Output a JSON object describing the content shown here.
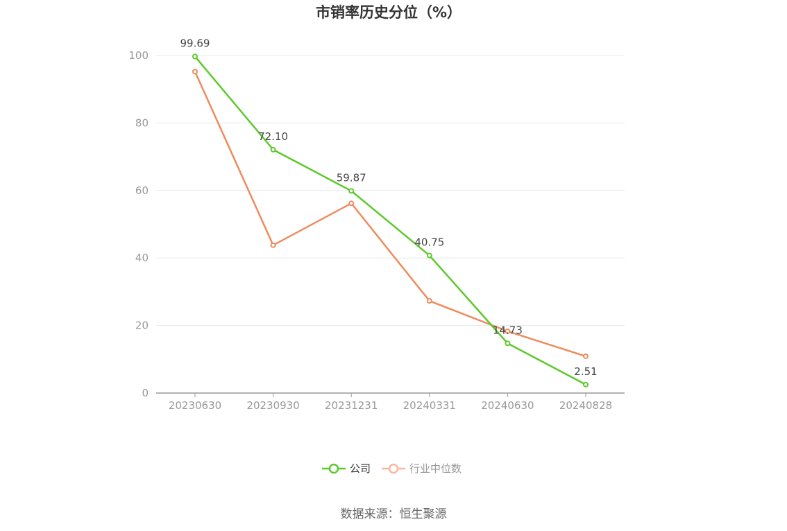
{
  "chart_data": {
    "type": "line",
    "title": "市销率历史分位（%）",
    "categories": [
      "20230630",
      "20230930",
      "20231231",
      "20240331",
      "20240630",
      "20240828"
    ],
    "ylim": [
      0,
      100
    ],
    "yticks": [
      0,
      20,
      40,
      60,
      80,
      100
    ],
    "grid": true,
    "series": [
      {
        "name": "公司",
        "color": "#5cc92b",
        "values": [
          99.69,
          72.1,
          59.87,
          40.75,
          14.73,
          2.51
        ],
        "labels": [
          "99.69",
          "72.10",
          "59.87",
          "40.75",
          "14.73",
          "2.51"
        ]
      },
      {
        "name": "行业中位数",
        "color": "#f08a5d",
        "legend_color": "#f8b7a0",
        "values": [
          95.2,
          43.8,
          56.2,
          27.3,
          18.3,
          10.9
        ]
      }
    ],
    "legend_position": "bottom"
  },
  "source": "数据来源：恒生聚源"
}
